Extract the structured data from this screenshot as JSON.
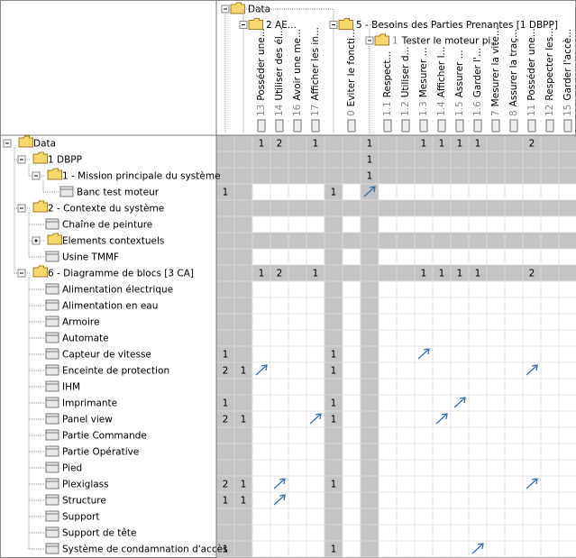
{
  "columns": [
    {
      "label": "Data",
      "group": true,
      "level": 0
    },
    {
      "label": "2 AE...",
      "group": true,
      "level": 1
    },
    {
      "number": "13",
      "name": "Posséder une..."
    },
    {
      "number": "14",
      "name": "Utiliser des él..."
    },
    {
      "number": "16",
      "name": "Avoir une me..."
    },
    {
      "number": "17",
      "name": "Afficher les in..."
    },
    {
      "label": "5 - Besoins des Parties Prenantes [1 DBPP]",
      "group": true,
      "level": 1
    },
    {
      "number": "0",
      "name": "Eviter le foncti..."
    },
    {
      "number": "1",
      "name": "Tester le moteur pi...",
      "group": true,
      "level": 2
    },
    {
      "number": "1.1",
      "name": "Respect..."
    },
    {
      "number": "1.2",
      "name": "Utiliser d..."
    },
    {
      "number": "1.3",
      "name": "Mesurer ..."
    },
    {
      "number": "1.4",
      "name": "Afficher l..."
    },
    {
      "number": "1.5",
      "name": "Assurer ..."
    },
    {
      "number": "1.6",
      "name": "Garder l'..."
    },
    {
      "number": "7",
      "name": "Mesurer la vite..."
    },
    {
      "number": "8",
      "name": "Assurer la traç..."
    },
    {
      "number": "11",
      "name": "Posséder une..."
    },
    {
      "number": "12",
      "name": "Respecter les..."
    },
    {
      "number": "15",
      "name": "Garder l'accè..."
    }
  ],
  "rows": [
    {
      "label": "Data",
      "level": 0,
      "expanded": true,
      "cells": [
        null,
        null,
        1,
        2,
        null,
        1,
        null,
        null,
        1,
        null,
        null,
        1,
        1,
        1,
        1,
        null,
        null,
        2,
        null,
        null
      ],
      "arrows": []
    },
    {
      "label": "1 DBPP",
      "level": 1,
      "expanded": true,
      "cells": [
        null,
        null,
        null,
        null,
        null,
        null,
        null,
        null,
        1,
        null,
        null,
        null,
        null,
        null,
        null,
        null,
        null,
        null,
        null,
        null
      ],
      "arrows": []
    },
    {
      "label": "1 - Mission principale du système",
      "level": 2,
      "expanded": true,
      "cells": [
        null,
        null,
        null,
        null,
        null,
        null,
        null,
        null,
        1,
        null,
        null,
        null,
        null,
        null,
        null,
        null,
        null,
        null,
        null,
        null
      ],
      "arrows": []
    },
    {
      "label": "Banc test moteur",
      "level": 3,
      "cells": [
        1,
        null,
        null,
        null,
        null,
        null,
        1,
        null,
        null,
        null,
        null,
        null,
        null,
        null,
        null,
        null,
        null,
        null,
        null,
        null
      ],
      "arrows": [
        8
      ]
    },
    {
      "label": "2 - Contexte du système",
      "level": 1,
      "expanded": true,
      "cells": [
        null,
        null,
        null,
        null,
        null,
        null,
        null,
        null,
        null,
        null,
        null,
        null,
        null,
        null,
        null,
        null,
        null,
        null,
        null,
        null
      ],
      "arrows": []
    },
    {
      "label": "Chaîne de peinture",
      "level": 2,
      "cells": [
        null,
        null,
        null,
        null,
        null,
        null,
        null,
        null,
        null,
        null,
        null,
        null,
        null,
        null,
        null,
        null,
        null,
        null,
        null,
        null
      ],
      "arrows": []
    },
    {
      "label": "Elements contextuels",
      "level": 2,
      "expanded": false,
      "cells": [
        null,
        null,
        null,
        null,
        null,
        null,
        null,
        null,
        null,
        null,
        null,
        null,
        null,
        null,
        null,
        null,
        null,
        null,
        null,
        null
      ],
      "arrows": []
    },
    {
      "label": "Usine TMMF",
      "level": 2,
      "cells": [
        null,
        null,
        null,
        null,
        null,
        null,
        null,
        null,
        null,
        null,
        null,
        null,
        null,
        null,
        null,
        null,
        null,
        null,
        null,
        null
      ],
      "arrows": []
    },
    {
      "label": "6 - Diagramme de blocs [3 CA]",
      "level": 1,
      "expanded": true,
      "cells": [
        null,
        null,
        1,
        2,
        null,
        1,
        null,
        null,
        null,
        null,
        null,
        1,
        1,
        1,
        1,
        null,
        null,
        2,
        null,
        null
      ],
      "arrows": []
    },
    {
      "label": "Alimentation électrique",
      "level": 2,
      "cells": [
        null,
        null,
        null,
        null,
        null,
        null,
        null,
        null,
        null,
        null,
        null,
        null,
        null,
        null,
        null,
        null,
        null,
        null,
        null,
        null
      ],
      "arrows": []
    },
    {
      "label": "Alimentation en eau",
      "level": 2,
      "cells": [
        null,
        null,
        null,
        null,
        null,
        null,
        null,
        null,
        null,
        null,
        null,
        null,
        null,
        null,
        null,
        null,
        null,
        null,
        null,
        null
      ],
      "arrows": []
    },
    {
      "label": "Armoire",
      "level": 2,
      "cells": [
        null,
        null,
        null,
        null,
        null,
        null,
        null,
        null,
        null,
        null,
        null,
        null,
        null,
        null,
        null,
        null,
        null,
        null,
        null,
        null
      ],
      "arrows": []
    },
    {
      "label": "Automate",
      "level": 2,
      "cells": [
        null,
        null,
        null,
        null,
        null,
        null,
        null,
        null,
        null,
        null,
        null,
        null,
        null,
        null,
        null,
        null,
        null,
        null,
        null,
        null
      ],
      "arrows": []
    },
    {
      "label": "Capteur de vitesse",
      "level": 2,
      "cells": [
        1,
        null,
        null,
        null,
        null,
        null,
        1,
        null,
        null,
        null,
        null,
        null,
        null,
        null,
        null,
        null,
        null,
        null,
        null,
        null
      ],
      "arrows": [
        11
      ]
    },
    {
      "label": "Enceinte de protection",
      "level": 2,
      "cells": [
        2,
        1,
        null,
        null,
        null,
        null,
        1,
        null,
        null,
        null,
        null,
        null,
        null,
        null,
        null,
        null,
        null,
        null,
        null,
        null
      ],
      "arrows": [
        2,
        17
      ]
    },
    {
      "label": "IHM",
      "level": 2,
      "cells": [
        null,
        null,
        null,
        null,
        null,
        null,
        null,
        null,
        null,
        null,
        null,
        null,
        null,
        null,
        null,
        null,
        null,
        null,
        null,
        null
      ],
      "arrows": []
    },
    {
      "label": "Imprimante",
      "level": 2,
      "cells": [
        1,
        null,
        null,
        null,
        null,
        null,
        1,
        null,
        null,
        null,
        null,
        null,
        null,
        null,
        null,
        null,
        null,
        null,
        null,
        null
      ],
      "arrows": [
        13
      ]
    },
    {
      "label": "Panel view",
      "level": 2,
      "cells": [
        2,
        1,
        null,
        null,
        null,
        null,
        1,
        null,
        null,
        null,
        null,
        null,
        null,
        null,
        null,
        null,
        null,
        null,
        null,
        null
      ],
      "arrows": [
        5,
        12
      ]
    },
    {
      "label": "Partie Commande",
      "level": 2,
      "cells": [
        null,
        null,
        null,
        null,
        null,
        null,
        null,
        null,
        null,
        null,
        null,
        null,
        null,
        null,
        null,
        null,
        null,
        null,
        null,
        null
      ],
      "arrows": []
    },
    {
      "label": "Partie Opérative",
      "level": 2,
      "cells": [
        null,
        null,
        null,
        null,
        null,
        null,
        null,
        null,
        null,
        null,
        null,
        null,
        null,
        null,
        null,
        null,
        null,
        null,
        null,
        null
      ],
      "arrows": []
    },
    {
      "label": "Pied",
      "level": 2,
      "cells": [
        null,
        null,
        null,
        null,
        null,
        null,
        null,
        null,
        null,
        null,
        null,
        null,
        null,
        null,
        null,
        null,
        null,
        null,
        null,
        null
      ],
      "arrows": []
    },
    {
      "label": "Plexiglass",
      "level": 2,
      "cells": [
        2,
        1,
        null,
        null,
        null,
        null,
        1,
        null,
        null,
        null,
        null,
        null,
        null,
        null,
        null,
        null,
        null,
        null,
        null,
        null
      ],
      "arrows": [
        3,
        17
      ]
    },
    {
      "label": "Structure",
      "level": 2,
      "cells": [
        1,
        1,
        null,
        null,
        null,
        null,
        null,
        null,
        null,
        null,
        null,
        null,
        null,
        null,
        null,
        null,
        null,
        null,
        null,
        null
      ],
      "arrows": [
        3
      ]
    },
    {
      "label": "Support",
      "level": 2,
      "cells": [
        null,
        null,
        null,
        null,
        null,
        null,
        null,
        null,
        null,
        null,
        null,
        null,
        null,
        null,
        null,
        null,
        null,
        null,
        null,
        null
      ],
      "arrows": []
    },
    {
      "label": "Support de tête",
      "level": 2,
      "cells": [
        null,
        null,
        null,
        null,
        null,
        null,
        null,
        null,
        null,
        null,
        null,
        null,
        null,
        null,
        null,
        null,
        null,
        null,
        null,
        null
      ],
      "arrows": []
    },
    {
      "label": "Système de condamnation d'accès",
      "level": 2,
      "cells": [
        1,
        null,
        null,
        null,
        null,
        null,
        1,
        null,
        null,
        null,
        null,
        null,
        null,
        null,
        null,
        null,
        null,
        null,
        null,
        null
      ],
      "arrows": [
        14
      ]
    }
  ]
}
